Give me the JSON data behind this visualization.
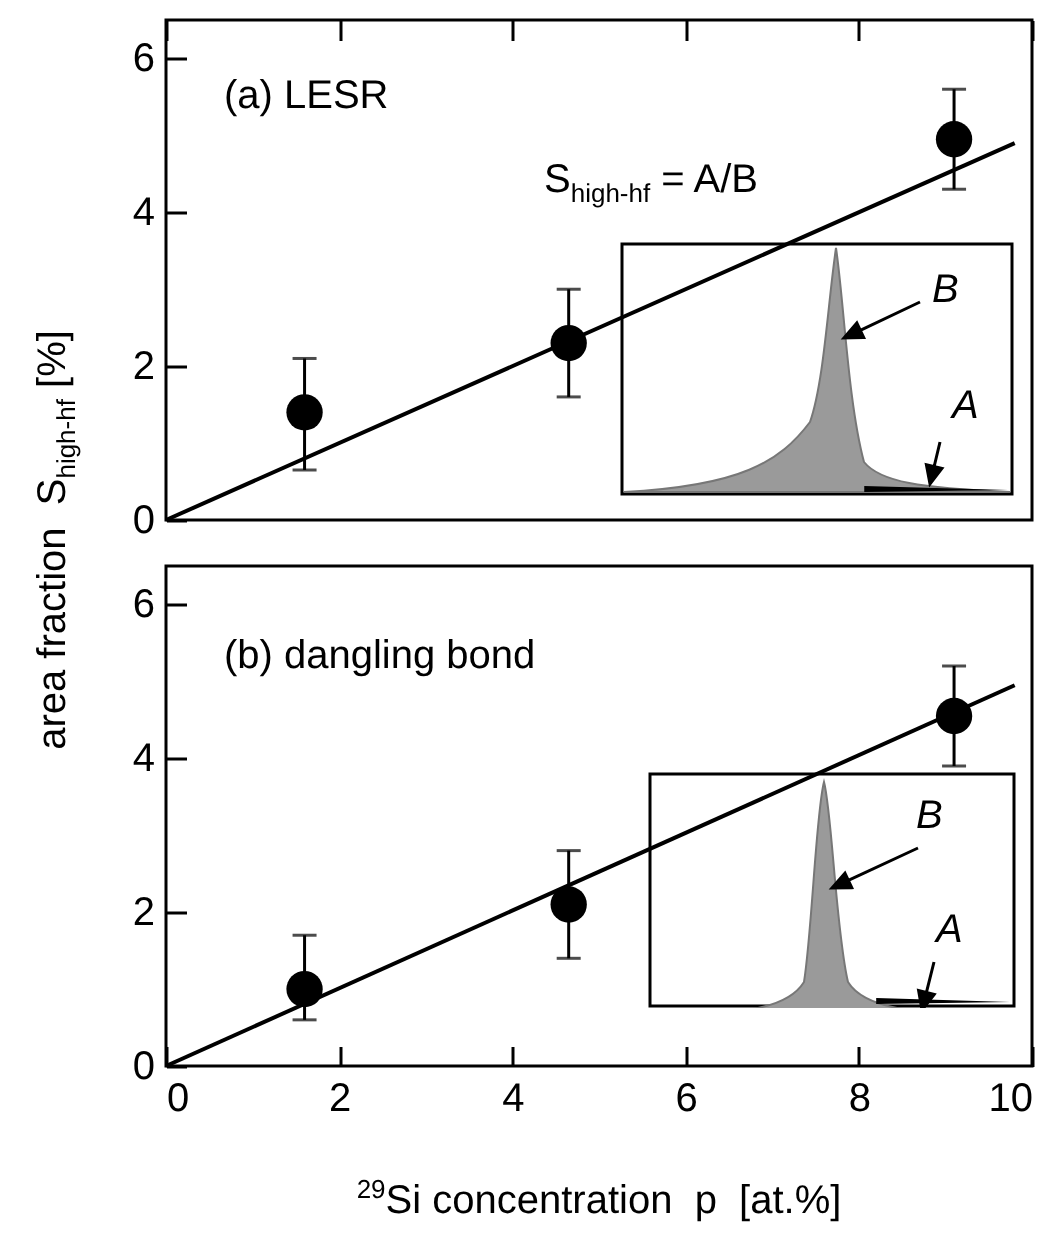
{
  "chart_data": [
    {
      "type": "scatter",
      "ylabel": "area fraction  S$_{high-hf}$ [%]",
      "xlim": [
        0,
        10
      ],
      "xticks": [
        0,
        2,
        4,
        6,
        8,
        10
      ],
      "ylim": [
        0,
        6.5
      ],
      "yticks": [
        0,
        2,
        4,
        6
      ],
      "tick_labels": "y",
      "grid": false,
      "legend": false,
      "annotations": [
        "(a) LESR",
        "S$_{high-hf}$ = A/B",
        "B",
        "A"
      ],
      "series": [
        {
          "type": "scatter",
          "color": "#000000",
          "marker": "circle",
          "x": [
            1.6,
            4.65,
            9.1
          ],
          "values": [
            1.4,
            2.3,
            4.95
          ],
          "errors": [
            [
              0.65,
              2.1
            ],
            [
              1.6,
              3.0
            ],
            [
              4.3,
              5.6
            ]
          ]
        },
        {
          "type": "line",
          "color": "#000000",
          "marker": "none",
          "x": [
            0,
            9.8
          ],
          "values": [
            0,
            4.9
          ],
          "line_style": "solid"
        }
      ]
    },
    {
      "type": "scatter",
      "xlabel": "$^{29}$Si concentration  p  [at.%]",
      "xlim": [
        0,
        10
      ],
      "xticks": [
        0,
        2,
        4,
        6,
        8,
        10
      ],
      "ylim": [
        0,
        6.5
      ],
      "yticks": [
        0,
        2,
        4,
        6
      ],
      "grid": false,
      "legend": false,
      "annotations": [
        "(b) dangling bond",
        "B",
        "A"
      ],
      "series": [
        {
          "type": "scatter",
          "color": "#000000",
          "marker": "circle",
          "x": [
            1.6,
            4.65,
            9.1
          ],
          "values": [
            1.0,
            2.1,
            4.55
          ],
          "errors": [
            [
              0.6,
              1.7
            ],
            [
              1.4,
              2.8
            ],
            [
              3.9,
              5.2
            ]
          ]
        },
        {
          "type": "line",
          "color": "#000000",
          "marker": "none",
          "x": [
            0,
            9.8
          ],
          "values": [
            0,
            4.95
          ],
          "line_style": "solid"
        }
      ]
    }
  ]
}
